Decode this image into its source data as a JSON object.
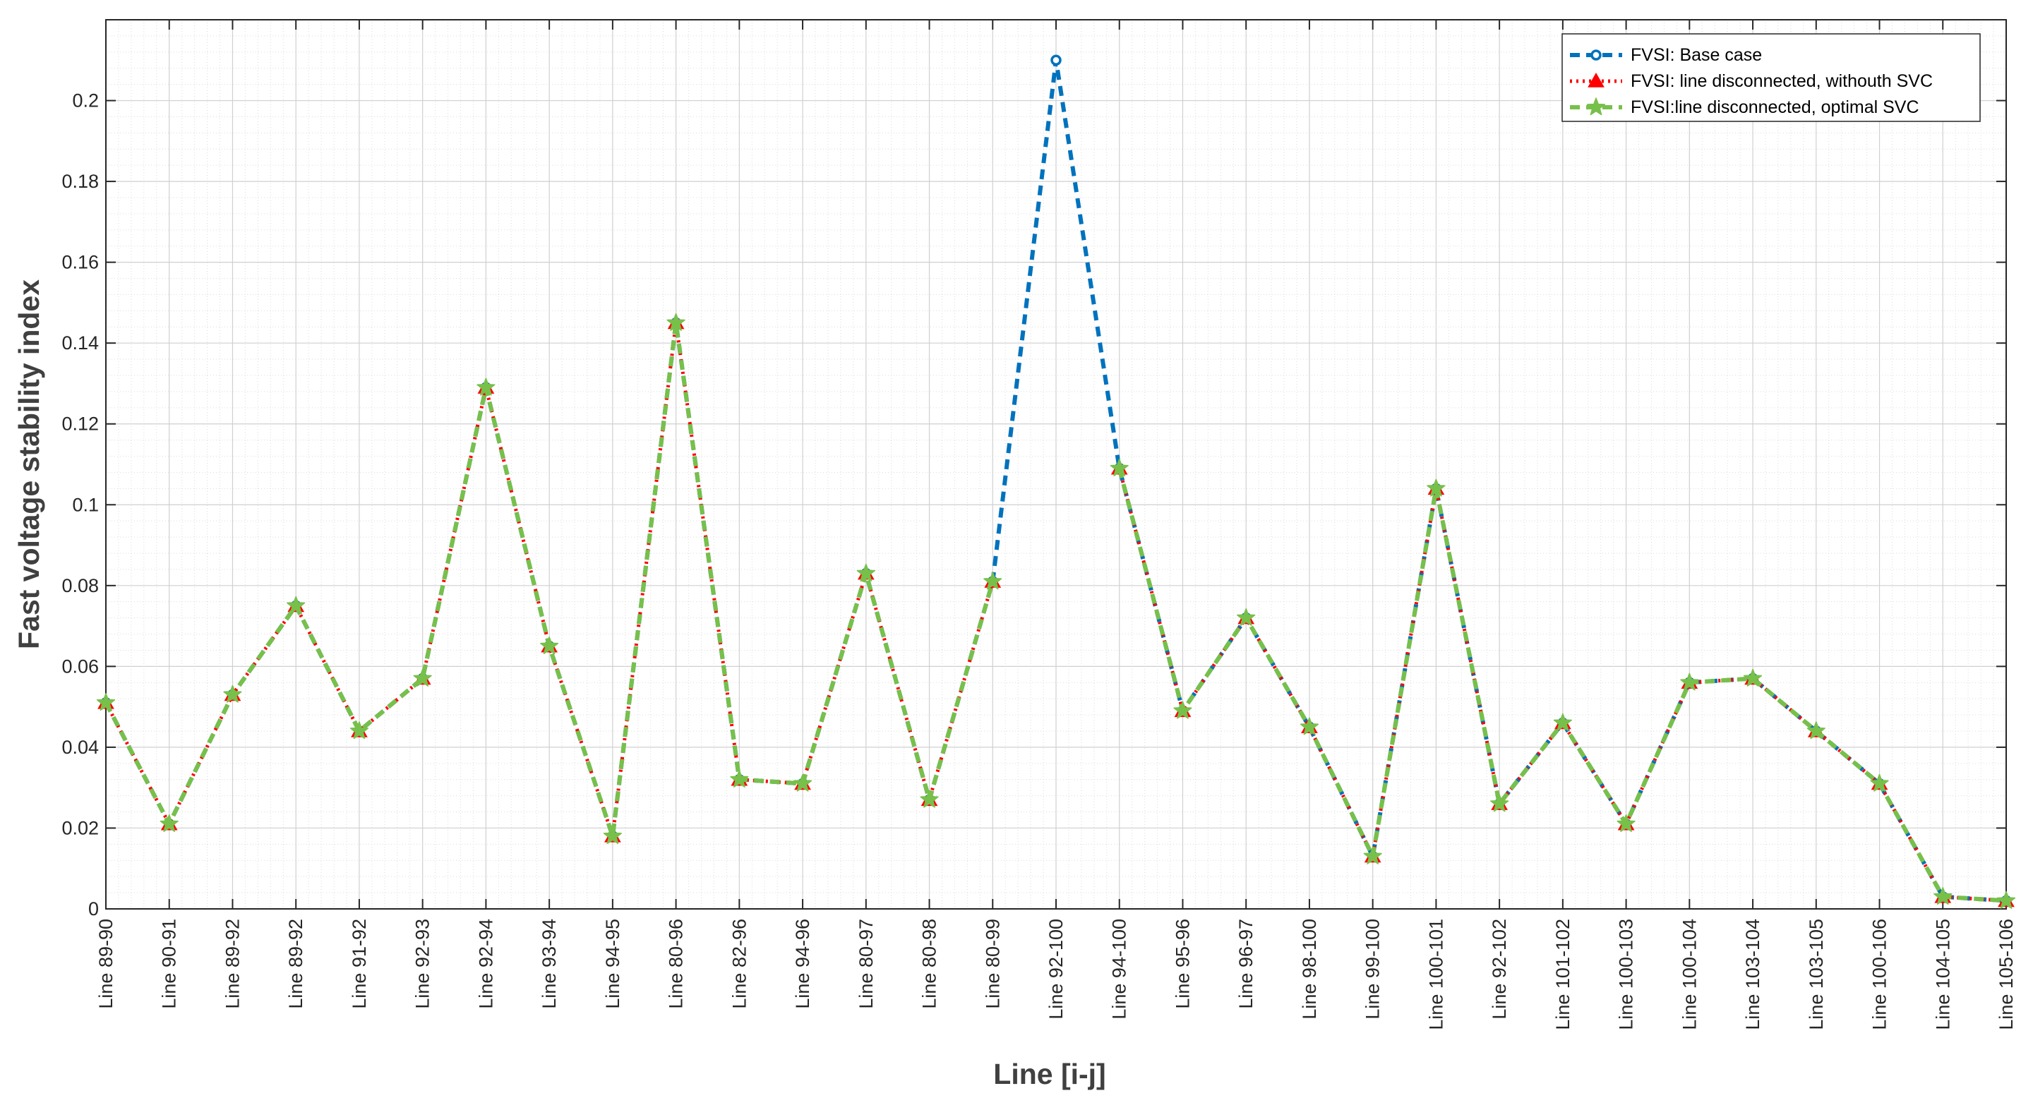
{
  "chart_data": {
    "type": "line",
    "xlabel": "Line [i-j]",
    "ylabel": "Fast voltage stability index",
    "ylim": [
      0,
      0.22
    ],
    "yticks": [
      0,
      0.02,
      0.04,
      0.06,
      0.08,
      0.1,
      0.12,
      0.14,
      0.16,
      0.18,
      0.2
    ],
    "ytick_labels": [
      "0",
      "0.02",
      "0.04",
      "0.06",
      "0.08",
      "0.1",
      "0.12",
      "0.14",
      "0.16",
      "0.18",
      "0.2"
    ],
    "grid": true,
    "minor_grid": true,
    "legend_position": "top-right",
    "categories": [
      "Line 89-90",
      "Line 90-91",
      "Line 89-92",
      "Line 89-92",
      "Line 91-92",
      "Line 92-93",
      "Line 92-94",
      "Line 93-94",
      "Line 94-95",
      "Line 80-96",
      "Line 82-96",
      "Line 94-96",
      "Line 80-97",
      "Line 80-98",
      "Line 80-99",
      "Line 92-100",
      "Line 94-100",
      "Line 95-96",
      "Line 96-97",
      "Line 98-100",
      "Line 99-100",
      "Line 100-101",
      "Line 92-102",
      "Line 101-102",
      "Line 100-103",
      "Line 100-104",
      "Line 103-104",
      "Line 103-105",
      "Line 100-106",
      "Line 104-105",
      "Line 105-106"
    ],
    "series": [
      {
        "name": "FVSI: Base case",
        "color": "#0072BD",
        "line_style": "dashed",
        "marker": "circle",
        "values": [
          0.051,
          0.021,
          0.053,
          0.075,
          0.044,
          0.057,
          0.129,
          0.065,
          0.018,
          0.145,
          0.032,
          0.031,
          0.083,
          0.027,
          0.081,
          0.21,
          0.109,
          0.049,
          0.072,
          0.045,
          0.013,
          0.104,
          0.026,
          0.046,
          0.021,
          0.056,
          0.057,
          0.044,
          0.031,
          0.003,
          0.002
        ]
      },
      {
        "name": "FVSI: line disconnected, withouth SVC",
        "color": "#FF0000",
        "line_style": "dotted",
        "marker": "triangle",
        "values": [
          0.051,
          0.021,
          0.053,
          0.075,
          0.044,
          0.057,
          0.129,
          0.065,
          0.018,
          0.145,
          0.032,
          0.031,
          0.083,
          0.027,
          0.081,
          null,
          0.109,
          0.049,
          0.072,
          0.045,
          0.013,
          0.104,
          0.026,
          0.046,
          0.021,
          0.056,
          0.057,
          0.044,
          0.031,
          0.003,
          0.002
        ]
      },
      {
        "name": "FVSI:line disconnected, optimal SVC",
        "color": "#77C04A",
        "line_style": "dashed",
        "marker": "star",
        "values": [
          0.051,
          0.021,
          0.053,
          0.075,
          0.044,
          0.057,
          0.129,
          0.065,
          0.018,
          0.145,
          0.032,
          0.031,
          0.083,
          0.027,
          0.081,
          null,
          0.109,
          0.049,
          0.072,
          0.045,
          0.013,
          0.104,
          0.026,
          0.046,
          0.021,
          0.056,
          0.057,
          0.044,
          0.031,
          0.003,
          0.002
        ]
      }
    ]
  }
}
